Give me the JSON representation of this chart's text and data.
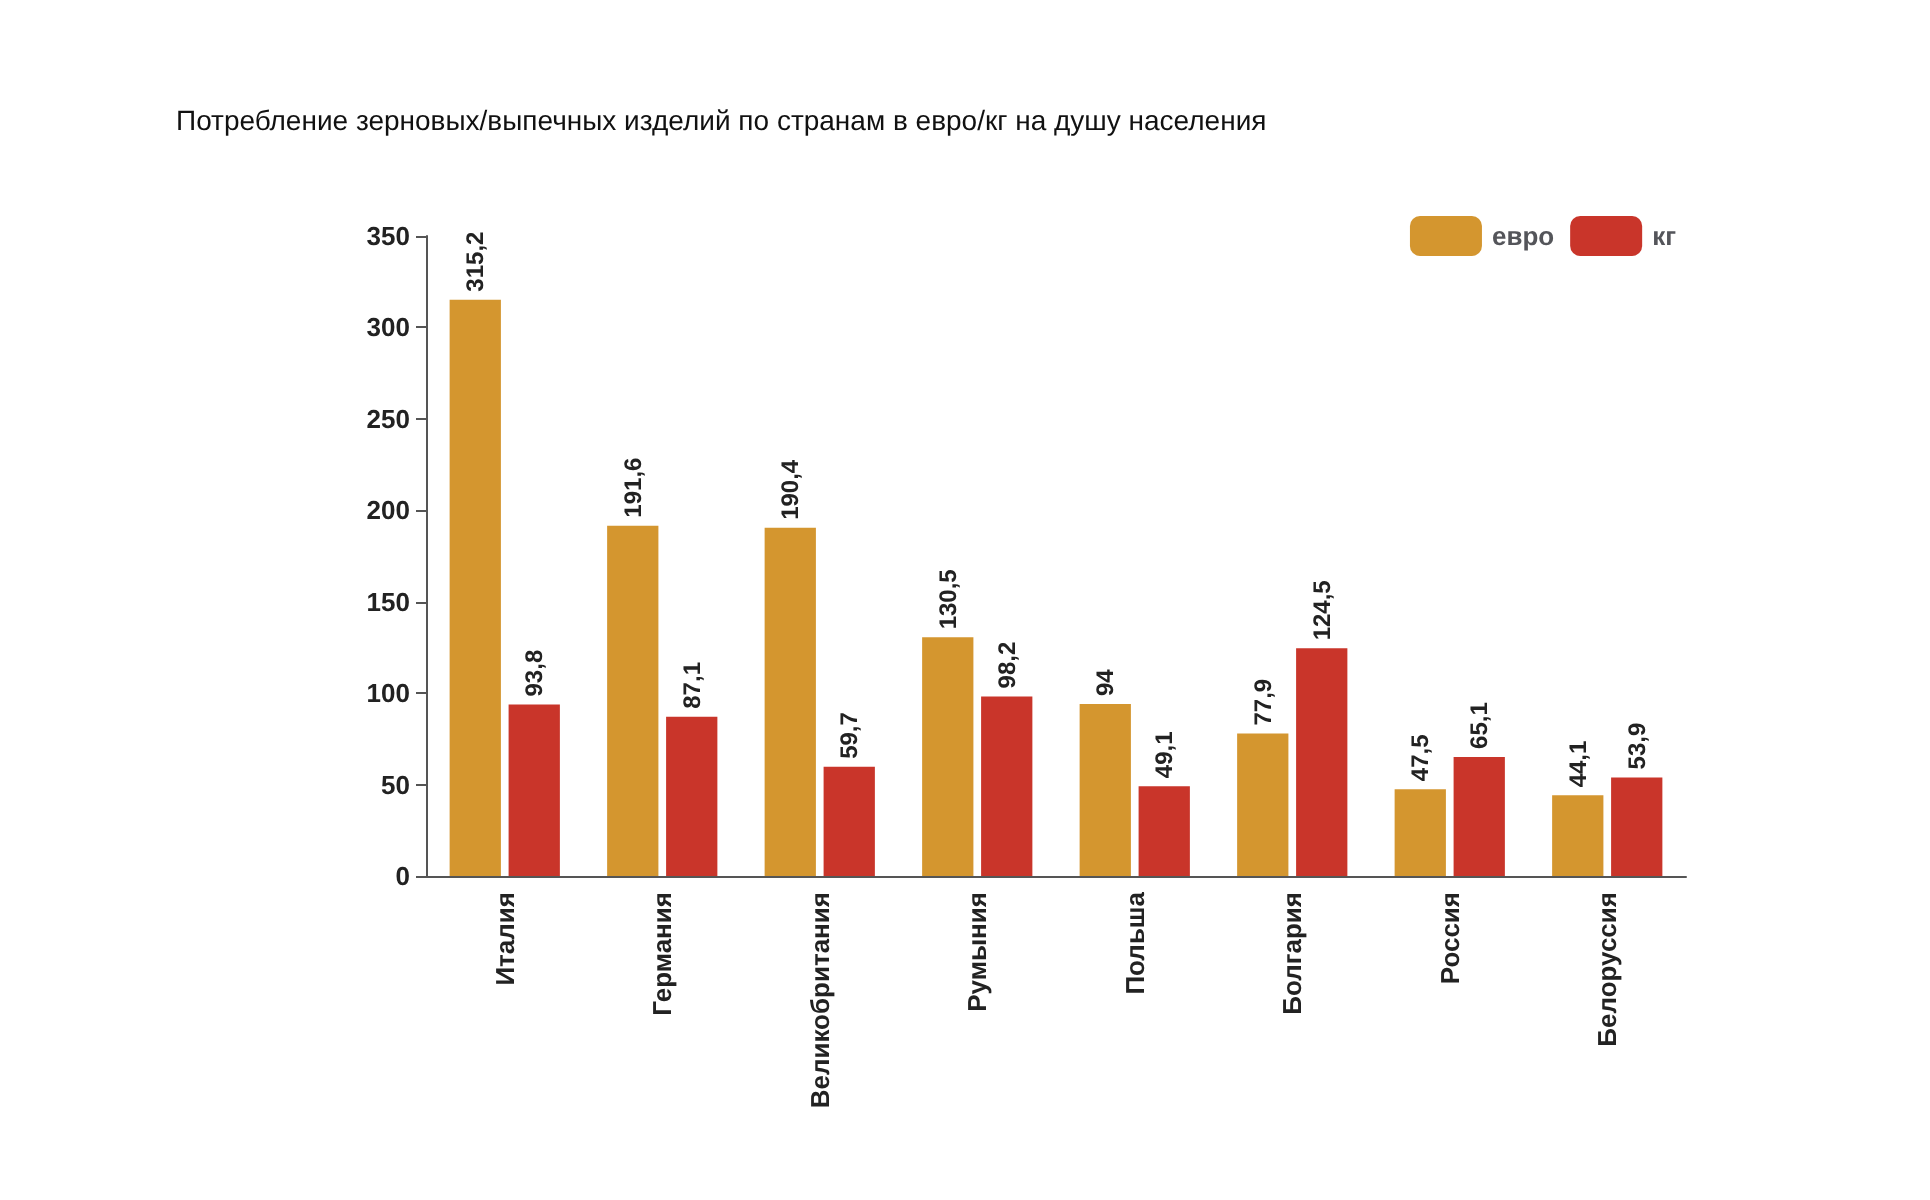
{
  "chart_data": {
    "type": "bar",
    "title": "Потребление зерновых/выпечных изделий по странам в евро/кг на душу населения",
    "categories": [
      "Италия",
      "Германия",
      "Великобритания",
      "Румыния",
      "Польша",
      "Болгария",
      "Россия",
      "Белоруссия"
    ],
    "series": [
      {
        "name": "евро",
        "color": "#d4962f",
        "values": [
          315.2,
          191.6,
          190.4,
          130.5,
          94,
          77.9,
          47.5,
          44.1
        ],
        "value_labels": [
          "315,2",
          "191,6",
          "190,4",
          "130,5",
          "94",
          "77,9",
          "47,5",
          "44,1"
        ]
      },
      {
        "name": "кг",
        "color": "#c9352a",
        "values": [
          93.8,
          87.1,
          59.7,
          98.2,
          49.1,
          124.5,
          65.1,
          53.9
        ],
        "value_labels": [
          "93,8",
          "87,1",
          "59,7",
          "98,2",
          "49,1",
          "124,5",
          "65,1",
          "53,9"
        ]
      }
    ],
    "ylim": [
      0,
      350
    ],
    "yticks": [
      0,
      50,
      100,
      150,
      200,
      250,
      300,
      350
    ],
    "grid": false,
    "legend": "top right"
  }
}
